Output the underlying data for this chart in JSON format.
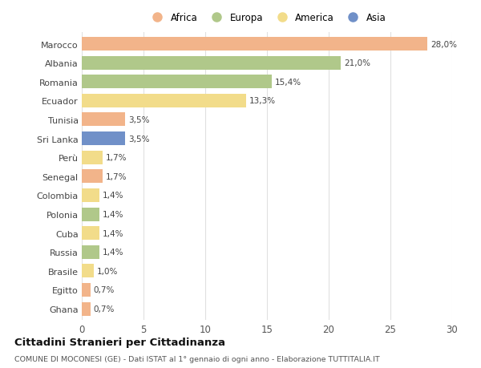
{
  "countries": [
    "Marocco",
    "Albania",
    "Romania",
    "Ecuador",
    "Tunisia",
    "Sri Lanka",
    "Perù",
    "Senegal",
    "Colombia",
    "Polonia",
    "Cuba",
    "Russia",
    "Brasile",
    "Egitto",
    "Ghana"
  ],
  "values": [
    28.0,
    21.0,
    15.4,
    13.3,
    3.5,
    3.5,
    1.7,
    1.7,
    1.4,
    1.4,
    1.4,
    1.4,
    1.0,
    0.7,
    0.7
  ],
  "labels": [
    "28,0%",
    "21,0%",
    "15,4%",
    "13,3%",
    "3,5%",
    "3,5%",
    "1,7%",
    "1,7%",
    "1,4%",
    "1,4%",
    "1,4%",
    "1,4%",
    "1,0%",
    "0,7%",
    "0,7%"
  ],
  "continents": [
    "Africa",
    "Europa",
    "Europa",
    "America",
    "Africa",
    "Asia",
    "America",
    "Africa",
    "America",
    "Europa",
    "America",
    "Europa",
    "America",
    "Africa",
    "Africa"
  ],
  "continent_colors": {
    "Africa": "#F2B48A",
    "Europa": "#B0C88A",
    "America": "#F2DC8A",
    "Asia": "#7090C8"
  },
  "legend_order": [
    "Africa",
    "Europa",
    "America",
    "Asia"
  ],
  "title": "Cittadini Stranieri per Cittadinanza",
  "subtitle": "COMUNE DI MOCONESI (GE) - Dati ISTAT al 1° gennaio di ogni anno - Elaborazione TUTTITALIA.IT",
  "xlim": [
    0,
    30
  ],
  "xticks": [
    0,
    5,
    10,
    15,
    20,
    25,
    30
  ],
  "background_color": "#ffffff",
  "grid_color": "#e0e0e0"
}
